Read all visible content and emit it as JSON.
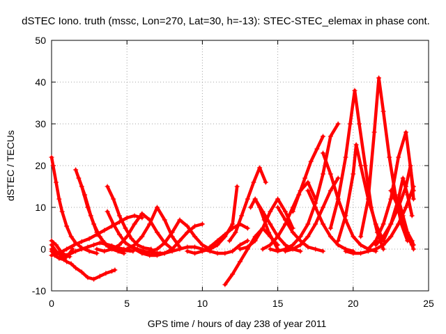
{
  "chart_data": {
    "type": "scatter",
    "title": "dSTEC Iono. truth (mssc, Lon=270, Lat=30, h=-13): STEC-STEC_elemax in phase cont.",
    "xlabel": "GPS time / hours of day 238 of year 2011",
    "ylabel": "dSTEC  / TECUs",
    "xlim": [
      0,
      25
    ],
    "ylim": [
      -10,
      50
    ],
    "xticks": [
      0,
      5,
      10,
      15,
      20,
      25
    ],
    "yticks": [
      -10,
      0,
      10,
      20,
      30,
      40,
      50
    ],
    "grid": true,
    "marker": "plus",
    "color": "#ff0000",
    "series": [
      {
        "x": [
          0.0,
          0.1,
          0.3,
          0.5,
          0.7,
          1.0,
          1.3,
          1.6,
          2.0,
          2.5,
          3.0
        ],
        "y": [
          22,
          20,
          16,
          12,
          9,
          5.5,
          3,
          1.5,
          0.3,
          -0.5,
          -1
        ]
      },
      {
        "x": [
          0.0,
          0.3,
          0.7,
          1.0,
          1.3,
          1.6,
          2.0,
          2.4,
          2.8,
          3.2,
          3.6,
          4.0,
          4.2
        ],
        "y": [
          1,
          -0.5,
          -2,
          -3,
          -3.5,
          -4.5,
          -5.5,
          -6.8,
          -7.2,
          -6.5,
          -5.8,
          -5.3,
          -5
        ]
      },
      {
        "x": [
          0.0,
          0.2,
          0.5,
          0.8,
          1.1,
          1.4
        ],
        "y": [
          -0.5,
          -1.5,
          -2.2,
          -2.5,
          -1.5,
          0
        ]
      },
      {
        "x": [
          0.0,
          0.3,
          0.6,
          0.9,
          1.2
        ],
        "y": [
          2,
          1,
          -0.5,
          -1.5,
          -1.8
        ]
      },
      {
        "x": [
          0.0,
          0.4,
          0.8,
          1.2,
          1.6,
          2.0,
          2.4,
          2.8,
          3.2,
          3.6,
          4.0,
          4.4,
          4.8,
          5.2
        ],
        "y": [
          0,
          -1,
          -1.5,
          -1.2,
          -0.5,
          0,
          0.5,
          1,
          1.5,
          1.2,
          0.8,
          0.3,
          0,
          -0.3
        ]
      },
      {
        "x": [
          1.6,
          2.0,
          2.4,
          2.8,
          3.2,
          3.6,
          4.0,
          4.4,
          4.8
        ],
        "y": [
          19,
          15,
          10,
          6,
          3,
          1,
          0,
          -0.5,
          -1
        ]
      },
      {
        "x": [
          1.8,
          2.2,
          2.6,
          3.0,
          3.4,
          3.8,
          4.2,
          4.8,
          5.4
        ],
        "y": [
          17,
          13,
          8,
          4,
          2,
          0.5,
          0,
          -0.3,
          -0.5
        ]
      },
      {
        "x": [
          3.7,
          4.1,
          4.5,
          4.9,
          5.3,
          5.7,
          6.1,
          6.6
        ],
        "y": [
          15,
          12,
          8,
          5,
          2.5,
          1,
          0.3,
          0
        ]
      },
      {
        "x": [
          3.7,
          4.1,
          4.5,
          4.9,
          5.3,
          5.7,
          6.1,
          6.6,
          7.2
        ],
        "y": [
          9,
          6,
          3.5,
          1.5,
          0.5,
          0,
          -0.5,
          -0.8,
          -1
        ]
      },
      {
        "x": [
          0.0,
          0.5,
          1.0,
          1.5,
          2.0,
          2.5,
          3.0,
          3.5,
          4.0,
          4.5,
          5.0,
          5.5,
          6.0
        ],
        "y": [
          -1.5,
          -1,
          0,
          1,
          1.8,
          2.5,
          3.5,
          4.5,
          5.5,
          6.5,
          7.5,
          8,
          7.5
        ]
      },
      {
        "x": [
          3.0,
          3.5,
          4.0,
          4.5,
          5.0,
          5.5,
          6.0,
          6.5,
          7.0,
          7.5,
          8.0
        ],
        "y": [
          0,
          -0.5,
          0,
          1,
          3,
          6,
          8.5,
          7,
          4,
          1.5,
          0
        ]
      },
      {
        "x": [
          4.5,
          5.0,
          5.5,
          6.0,
          6.5,
          7.0,
          7.5,
          8.0,
          8.5
        ],
        "y": [
          -0.5,
          0,
          1,
          3,
          6,
          10,
          7,
          3,
          0.5
        ]
      },
      {
        "x": [
          5.5,
          6.0,
          6.5,
          7.0,
          7.5,
          8.0,
          8.5,
          9.0,
          9.5,
          10.0
        ],
        "y": [
          0,
          -1,
          -1.5,
          -1.5,
          -1,
          0,
          2,
          4,
          5.5,
          6
        ]
      },
      {
        "x": [
          6.5,
          7.0,
          7.5,
          8.0,
          8.5,
          9.0,
          9.5,
          10.0,
          10.5
        ],
        "y": [
          -0.5,
          0,
          1.5,
          4,
          7,
          5.5,
          3,
          1,
          0
        ]
      },
      {
        "x": [
          7.0,
          7.5,
          8.0,
          8.5,
          9.0,
          9.5,
          10.0,
          10.5,
          11.0,
          11.5,
          12.0,
          12.5,
          13.0
        ],
        "y": [
          -1,
          -1,
          -0.5,
          0,
          0.5,
          0.5,
          0,
          -0.5,
          -1,
          -1,
          -0.5,
          1,
          2
        ]
      },
      {
        "x": [
          9.0,
          9.5,
          10.0,
          10.5,
          11.0,
          11.5,
          12.0,
          12.5,
          13.0
        ],
        "y": [
          -0.5,
          -1,
          -0.5,
          0.5,
          2,
          3.5,
          5,
          6,
          5
        ]
      },
      {
        "x": [
          11.5,
          12.0,
          12.5,
          13.0,
          13.5,
          14.0,
          14.5,
          15.0
        ],
        "y": [
          -8.5,
          -6,
          -3,
          0,
          3,
          5,
          3,
          1
        ]
      },
      {
        "x": [
          11.8,
          12.2,
          12.6,
          13.0,
          13.4,
          13.8,
          14.2
        ],
        "y": [
          2,
          4,
          8,
          12,
          16,
          19.5,
          16
        ]
      },
      {
        "x": [
          10.0,
          10.5,
          11.0,
          11.5,
          12.0,
          12.3
        ],
        "y": [
          -0.5,
          0,
          1,
          3,
          6,
          15
        ]
      },
      {
        "x": [
          12.5,
          13.0,
          13.5,
          14.0,
          14.5,
          15.0,
          15.5,
          16.0
        ],
        "y": [
          0,
          0.5,
          2,
          5,
          9,
          12,
          9,
          5
        ]
      },
      {
        "x": [
          13.2,
          13.5,
          13.8,
          14.1,
          14.4,
          14.7,
          15.0
        ],
        "y": [
          10,
          12,
          10,
          7,
          4,
          2,
          0
        ]
      },
      {
        "x": [
          13.5,
          14.0,
          14.5,
          15.0,
          15.5,
          16.0,
          16.5
        ],
        "y": [
          12,
          9,
          6,
          3,
          1,
          0,
          -0.5
        ]
      },
      {
        "x": [
          14.0,
          14.5,
          15.0,
          15.5,
          16.0,
          16.5,
          17.0,
          17.5
        ],
        "y": [
          0,
          1,
          3,
          6,
          10,
          14,
          16,
          12
        ]
      },
      {
        "x": [
          14.5,
          15.0,
          15.5,
          16.0,
          16.5,
          17.0,
          17.5,
          18.0,
          18.5,
          19.0
        ],
        "y": [
          0,
          -0.5,
          0,
          1,
          3,
          6,
          11,
          18,
          27,
          30
        ]
      },
      {
        "x": [
          15.0,
          15.5,
          16.0,
          16.5,
          17.0,
          17.5,
          18.0
        ],
        "y": [
          10,
          7,
          4,
          2,
          0.5,
          0,
          -0.5
        ]
      },
      {
        "x": [
          15.5,
          16.0,
          16.5,
          17.0,
          17.5,
          18.0,
          18.5,
          19.0
        ],
        "y": [
          -0.5,
          0,
          1,
          3,
          6,
          10,
          14,
          17
        ]
      },
      {
        "x": [
          16.0,
          16.4,
          16.8,
          17.2,
          17.6,
          18.0
        ],
        "y": [
          9,
          13,
          17,
          21,
          24,
          27
        ]
      },
      {
        "x": [
          17.0,
          17.5,
          18.0,
          18.5,
          19.0,
          19.5,
          20.0
        ],
        "y": [
          14,
          10,
          6,
          3,
          1,
          0,
          -0.5
        ]
      },
      {
        "x": [
          18.0,
          18.5,
          19.0,
          19.5,
          20.0,
          20.5,
          21.0,
          21.5
        ],
        "y": [
          23,
          18,
          12,
          7,
          3,
          1,
          0,
          -0.5
        ]
      },
      {
        "x": [
          18.5,
          19.0,
          19.5,
          19.8,
          20.1,
          20.4,
          20.8,
          21.2,
          21.6,
          22.0
        ],
        "y": [
          5,
          12,
          22,
          30,
          38,
          30,
          20,
          10,
          4,
          0
        ]
      },
      {
        "x": [
          19.0,
          19.5,
          20.0,
          20.2,
          20.5,
          21.0,
          21.5,
          22.0
        ],
        "y": [
          2,
          8,
          18,
          25,
          20,
          12,
          6,
          2
        ]
      },
      {
        "x": [
          20.5,
          21.0,
          21.4,
          21.7,
          22.0,
          22.4,
          22.8,
          23.2,
          23.6
        ],
        "y": [
          3,
          12,
          28,
          41,
          33,
          22,
          13,
          6,
          2
        ]
      },
      {
        "x": [
          21.0,
          21.5,
          22.0,
          22.5,
          23.0,
          23.5,
          24.0
        ],
        "y": [
          0,
          2,
          6,
          12,
          22,
          28,
          14
        ]
      },
      {
        "x": [
          21.5,
          22.0,
          22.5,
          23.0,
          23.5,
          23.8,
          24.0
        ],
        "y": [
          1,
          3,
          6,
          10,
          15,
          20,
          12
        ]
      },
      {
        "x": [
          22.0,
          22.5,
          23.0,
          23.3,
          23.6,
          23.9
        ],
        "y": [
          2,
          6,
          12,
          17,
          13,
          8
        ]
      },
      {
        "x": [
          19.5,
          20.0,
          20.5,
          21.0,
          21.5,
          22.0,
          22.5,
          23.0,
          23.5,
          24.0
        ],
        "y": [
          -0.5,
          -1,
          -1,
          -0.5,
          0,
          1,
          3,
          6,
          10,
          15
        ]
      },
      {
        "x": [
          22.5,
          23.0,
          23.3,
          23.6,
          23.9,
          24.0
        ],
        "y": [
          14,
          10,
          6,
          3,
          1,
          0
        ]
      },
      {
        "x": [
          23.0,
          23.3,
          23.6,
          23.9,
          24.0
        ],
        "y": [
          12,
          8,
          4,
          2,
          1
        ]
      }
    ]
  }
}
